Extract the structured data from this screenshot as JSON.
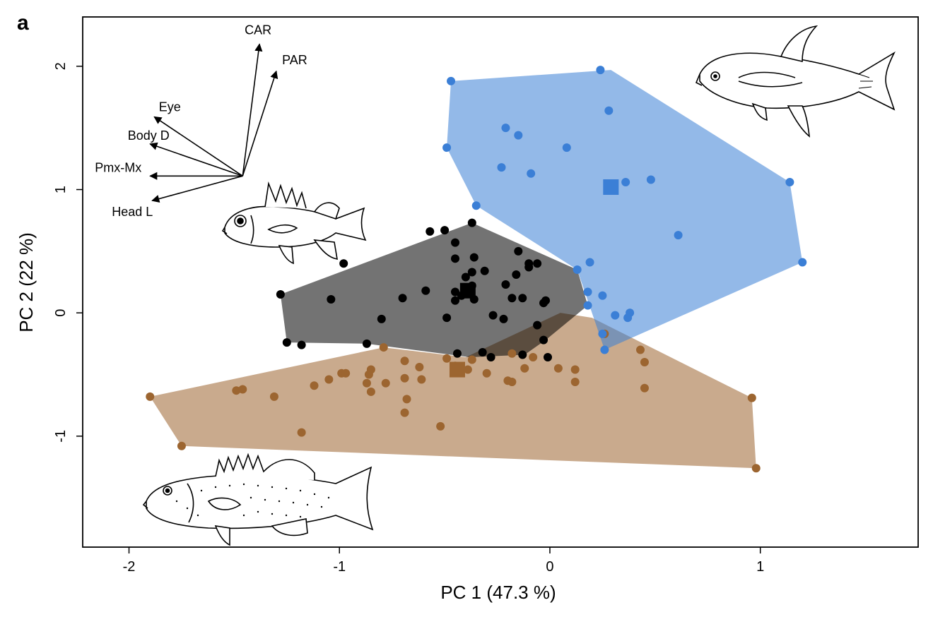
{
  "chart_data": {
    "type": "scatter",
    "panel_label": "a",
    "xlabel": "PC 1 (47.3 %)",
    "ylabel": "PC 2 (22 %)",
    "xlim": [
      -2.22,
      1.75
    ],
    "ylim": [
      -1.9,
      2.4
    ],
    "x_ticks": [
      -2,
      -1,
      0,
      1
    ],
    "y_ticks": [
      -1,
      0,
      1,
      2
    ],
    "grid": false,
    "colors": {
      "blue": "#3b7fd6",
      "black": "#000000",
      "brown": "#9c6530"
    },
    "series": [
      {
        "color": "#3b7fd6",
        "hull": [
          [
            -0.47,
            1.88
          ],
          [
            0.29,
            1.97
          ],
          [
            1.14,
            1.06
          ],
          [
            1.2,
            0.41
          ],
          [
            0.26,
            -0.3
          ],
          [
            0.13,
            0.35
          ],
          [
            -0.35,
            0.87
          ],
          [
            -0.49,
            1.34
          ]
        ],
        "centroid": [
          0.29,
          1.02
        ],
        "points": [
          [
            -0.47,
            1.88
          ],
          [
            0.24,
            1.97
          ],
          [
            0.28,
            1.64
          ],
          [
            -0.21,
            1.5
          ],
          [
            -0.15,
            1.44
          ],
          [
            0.08,
            1.34
          ],
          [
            -0.49,
            1.34
          ],
          [
            -0.23,
            1.18
          ],
          [
            -0.09,
            1.13
          ],
          [
            0.36,
            1.06
          ],
          [
            0.48,
            1.08
          ],
          [
            1.14,
            1.06
          ],
          [
            1.2,
            0.41
          ],
          [
            -0.35,
            0.87
          ],
          [
            0.61,
            0.63
          ],
          [
            0.19,
            0.41
          ],
          [
            0.18,
            0.17
          ],
          [
            0.25,
            0.14
          ],
          [
            0.13,
            0.35
          ],
          [
            0.31,
            -0.02
          ],
          [
            0.38,
            0.0
          ],
          [
            0.37,
            -0.04
          ],
          [
            0.26,
            -0.3
          ],
          [
            0.25,
            -0.17
          ],
          [
            0.18,
            0.06
          ]
        ]
      },
      {
        "color": "#000000",
        "hull": [
          [
            -0.37,
            0.73
          ],
          [
            0.13,
            0.35
          ],
          [
            0.18,
            0.06
          ],
          [
            -0.02,
            -0.22
          ],
          [
            -0.12,
            -0.34
          ],
          [
            -0.38,
            -0.36
          ],
          [
            -0.87,
            -0.25
          ],
          [
            -1.25,
            -0.24
          ],
          [
            -1.28,
            0.15
          ]
        ],
        "centroid": [
          -0.39,
          0.18
        ],
        "points": [
          [
            -0.37,
            0.73
          ],
          [
            -0.57,
            0.66
          ],
          [
            -0.5,
            0.67
          ],
          [
            -0.45,
            0.57
          ],
          [
            -0.98,
            0.4
          ],
          [
            -0.36,
            0.45
          ],
          [
            -0.37,
            0.33
          ],
          [
            -0.31,
            0.34
          ],
          [
            -0.45,
            0.44
          ],
          [
            -0.4,
            0.29
          ],
          [
            -0.15,
            0.5
          ],
          [
            -0.1,
            0.4
          ],
          [
            -0.06,
            0.4
          ],
          [
            -0.1,
            0.37
          ],
          [
            -1.04,
            0.11
          ],
          [
            -1.28,
            0.15
          ],
          [
            -0.7,
            0.12
          ],
          [
            -0.59,
            0.18
          ],
          [
            -0.45,
            0.17
          ],
          [
            -0.42,
            0.14
          ],
          [
            -0.37,
            0.22
          ],
          [
            -0.36,
            0.11
          ],
          [
            -0.45,
            0.1
          ],
          [
            -0.21,
            0.23
          ],
          [
            -0.16,
            0.31
          ],
          [
            -0.18,
            0.12
          ],
          [
            -0.13,
            0.12
          ],
          [
            -0.03,
            0.08
          ],
          [
            -0.02,
            0.1
          ],
          [
            -0.8,
            -0.05
          ],
          [
            -0.49,
            -0.04
          ],
          [
            -0.27,
            -0.02
          ],
          [
            -0.22,
            -0.05
          ],
          [
            -0.06,
            -0.1
          ],
          [
            -0.03,
            -0.22
          ],
          [
            -1.25,
            -0.24
          ],
          [
            -1.18,
            -0.26
          ],
          [
            -0.87,
            -0.25
          ],
          [
            -0.44,
            -0.33
          ],
          [
            -0.32,
            -0.32
          ],
          [
            -0.28,
            -0.36
          ],
          [
            -0.13,
            -0.34
          ],
          [
            -0.01,
            -0.36
          ]
        ]
      },
      {
        "color": "#9c6530",
        "hull": [
          [
            -1.9,
            -0.68
          ],
          [
            -1.75,
            -1.08
          ],
          [
            0.98,
            -1.26
          ],
          [
            0.96,
            -0.69
          ],
          [
            0.2,
            -0.04
          ],
          [
            0.05,
            0.0
          ],
          [
            -0.4,
            -0.36
          ],
          [
            -0.79,
            -0.28
          ]
        ],
        "centroid": [
          -0.44,
          -0.46
        ],
        "points": [
          [
            -1.9,
            -0.68
          ],
          [
            -1.75,
            -1.08
          ],
          [
            -1.49,
            -0.63
          ],
          [
            -1.46,
            -0.62
          ],
          [
            -1.31,
            -0.68
          ],
          [
            -1.12,
            -0.59
          ],
          [
            -1.05,
            -0.54
          ],
          [
            -0.99,
            -0.49
          ],
          [
            -0.97,
            -0.49
          ],
          [
            -0.87,
            -0.57
          ],
          [
            -0.85,
            -0.46
          ],
          [
            -0.86,
            -0.5
          ],
          [
            -0.85,
            -0.64
          ],
          [
            -0.79,
            -0.28
          ],
          [
            -0.78,
            -0.57
          ],
          [
            -0.69,
            -0.39
          ],
          [
            -0.69,
            -0.53
          ],
          [
            -0.68,
            -0.7
          ],
          [
            -0.69,
            -0.81
          ],
          [
            -0.62,
            -0.44
          ],
          [
            -0.61,
            -0.54
          ],
          [
            -0.52,
            -0.92
          ],
          [
            -1.18,
            -0.97
          ],
          [
            -0.49,
            -0.37
          ],
          [
            -0.45,
            -0.43
          ],
          [
            -0.43,
            -0.47
          ],
          [
            -0.39,
            -0.46
          ],
          [
            -0.37,
            -0.38
          ],
          [
            -0.3,
            -0.49
          ],
          [
            -0.2,
            -0.55
          ],
          [
            -0.18,
            -0.56
          ],
          [
            -0.18,
            -0.33
          ],
          [
            -0.12,
            -0.45
          ],
          [
            -0.08,
            -0.36
          ],
          [
            0.04,
            -0.45
          ],
          [
            0.12,
            -0.46
          ],
          [
            0.12,
            -0.56
          ],
          [
            0.26,
            -0.17
          ],
          [
            0.43,
            -0.3
          ],
          [
            0.45,
            -0.4
          ],
          [
            0.45,
            -0.61
          ],
          [
            0.96,
            -0.69
          ],
          [
            0.98,
            -1.26
          ]
        ]
      }
    ],
    "loadings": {
      "origin": [
        -1.46,
        1.11
      ],
      "vectors": [
        {
          "label": "CAR",
          "end": [
            -1.38,
            2.18
          ]
        },
        {
          "label": "PAR",
          "end": [
            -1.3,
            1.96
          ]
        },
        {
          "label": "Eye",
          "end": [
            -1.88,
            1.59
          ]
        },
        {
          "label": "Body D",
          "end": [
            -1.9,
            1.37
          ]
        },
        {
          "label": "Pmx-Mx",
          "end": [
            -1.9,
            1.11
          ]
        },
        {
          "label": "Head L",
          "end": [
            -1.89,
            0.91
          ]
        }
      ]
    }
  }
}
